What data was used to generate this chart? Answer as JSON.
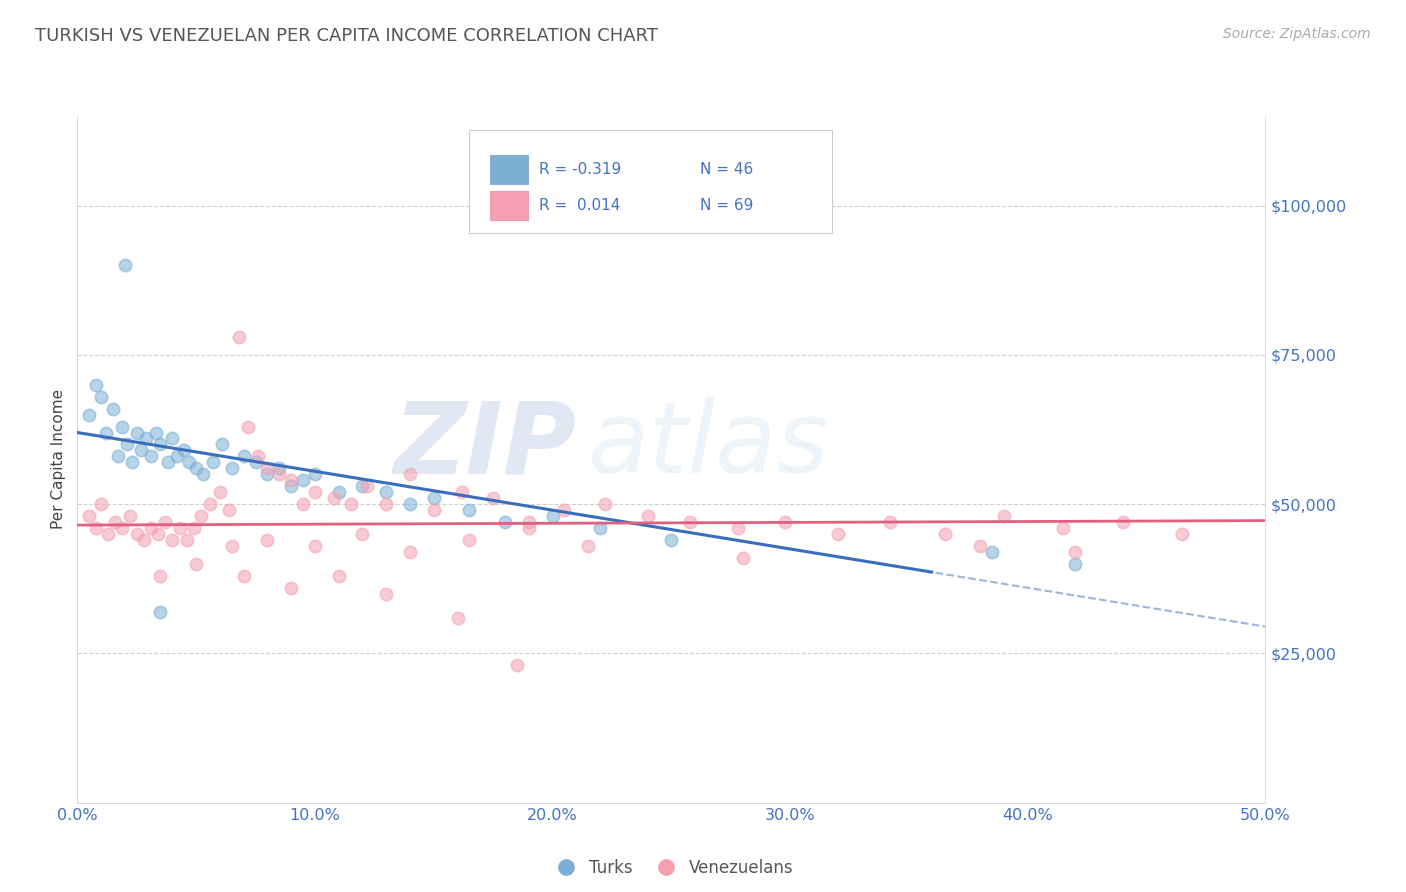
{
  "title": "TURKISH VS VENEZUELAN PER CAPITA INCOME CORRELATION CHART",
  "source_text": "Source: ZipAtlas.com",
  "ylabel": "Per Capita Income",
  "xlim": [
    0.0,
    0.5
  ],
  "ylim": [
    0,
    115000
  ],
  "yticks": [
    25000,
    50000,
    75000,
    100000
  ],
  "ytick_labels": [
    "$25,000",
    "$50,000",
    "$75,000",
    "$100,000"
  ],
  "xticks": [
    0.0,
    0.1,
    0.2,
    0.3,
    0.4,
    0.5
  ],
  "xtick_labels": [
    "0.0%",
    "10.0%",
    "20.0%",
    "30.0%",
    "40.0%",
    "50.0%"
  ],
  "blue_color": "#7bafd4",
  "pink_color": "#f4a0b0",
  "blue_line_color": "#3a6ebd",
  "pink_line_color": "#e06080",
  "axis_color": "#4472c4",
  "title_color": "#555555",
  "watermark_zip": "ZIP",
  "watermark_atlas": "atlas",
  "legend_r1_label": "R = -0.319",
  "legend_n1_label": "N = 46",
  "legend_r2_label": "R =  0.014",
  "legend_n2_label": "N = 69",
  "turks_x": [
    0.005,
    0.008,
    0.01,
    0.012,
    0.015,
    0.017,
    0.019,
    0.021,
    0.023,
    0.025,
    0.027,
    0.029,
    0.031,
    0.033,
    0.035,
    0.038,
    0.04,
    0.042,
    0.045,
    0.047,
    0.05,
    0.053,
    0.057,
    0.061,
    0.065,
    0.07,
    0.075,
    0.08,
    0.085,
    0.09,
    0.095,
    0.1,
    0.11,
    0.12,
    0.13,
    0.14,
    0.15,
    0.165,
    0.18,
    0.2,
    0.22,
    0.25,
    0.02,
    0.035,
    0.385,
    0.42
  ],
  "turks_y": [
    65000,
    70000,
    68000,
    62000,
    66000,
    58000,
    63000,
    60000,
    57000,
    62000,
    59000,
    61000,
    58000,
    62000,
    60000,
    57000,
    61000,
    58000,
    59000,
    57000,
    56000,
    55000,
    57000,
    60000,
    56000,
    58000,
    57000,
    55000,
    56000,
    53000,
    54000,
    55000,
    52000,
    53000,
    52000,
    50000,
    51000,
    49000,
    47000,
    48000,
    46000,
    44000,
    90000,
    32000,
    42000,
    40000
  ],
  "venezuelans_x": [
    0.005,
    0.008,
    0.01,
    0.013,
    0.016,
    0.019,
    0.022,
    0.025,
    0.028,
    0.031,
    0.034,
    0.037,
    0.04,
    0.043,
    0.046,
    0.049,
    0.052,
    0.056,
    0.06,
    0.064,
    0.068,
    0.072,
    0.076,
    0.08,
    0.085,
    0.09,
    0.095,
    0.1,
    0.108,
    0.115,
    0.122,
    0.13,
    0.14,
    0.15,
    0.162,
    0.175,
    0.19,
    0.205,
    0.222,
    0.24,
    0.258,
    0.278,
    0.298,
    0.32,
    0.342,
    0.365,
    0.39,
    0.415,
    0.44,
    0.465,
    0.065,
    0.08,
    0.1,
    0.12,
    0.14,
    0.165,
    0.19,
    0.215,
    0.035,
    0.05,
    0.07,
    0.09,
    0.11,
    0.13,
    0.16,
    0.28,
    0.38,
    0.42,
    0.185
  ],
  "venezuelans_y": [
    48000,
    46000,
    50000,
    45000,
    47000,
    46000,
    48000,
    45000,
    44000,
    46000,
    45000,
    47000,
    44000,
    46000,
    44000,
    46000,
    48000,
    50000,
    52000,
    49000,
    78000,
    63000,
    58000,
    56000,
    55000,
    54000,
    50000,
    52000,
    51000,
    50000,
    53000,
    50000,
    55000,
    49000,
    52000,
    51000,
    47000,
    49000,
    50000,
    48000,
    47000,
    46000,
    47000,
    45000,
    47000,
    45000,
    48000,
    46000,
    47000,
    45000,
    43000,
    44000,
    43000,
    45000,
    42000,
    44000,
    46000,
    43000,
    38000,
    40000,
    38000,
    36000,
    38000,
    35000,
    31000,
    41000,
    43000,
    42000,
    23000
  ],
  "blue_trend_start_x": 0.0,
  "blue_trend_solid_end_x": 0.36,
  "blue_trend_end_x": 0.5,
  "blue_intercept": 62000,
  "blue_slope": -65000,
  "pink_intercept": 46500,
  "pink_slope": 1500
}
